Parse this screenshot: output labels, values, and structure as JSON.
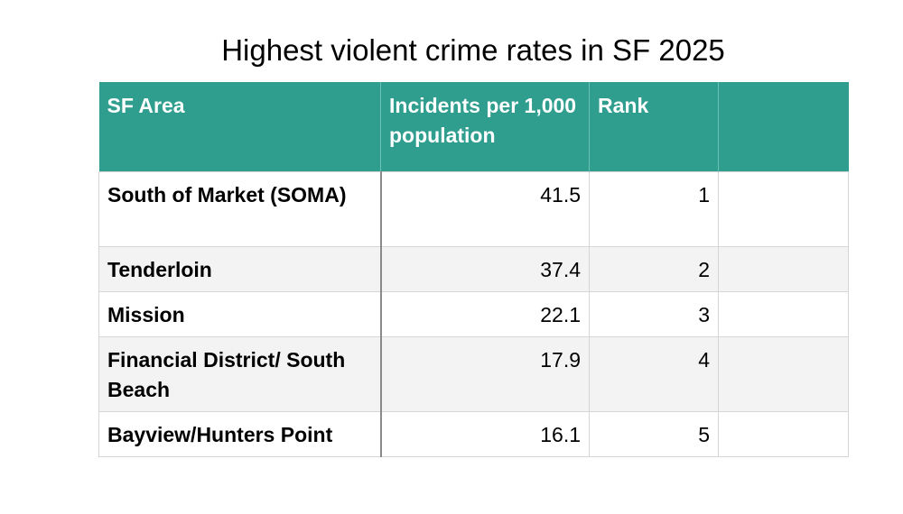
{
  "title": "Highest violent crime rates in SF 2025",
  "colors": {
    "header_background": "#2f9e8f",
    "header_text": "#ffffff",
    "alt_row_background": "#f3f3f3"
  },
  "table": {
    "headers": [
      "SF Area",
      "Incidents per 1,000 population",
      "Rank",
      ""
    ],
    "rows": [
      {
        "area": "South of Market (SOMA)",
        "incidents": "41.5",
        "rank": "1",
        "extra": ""
      },
      {
        "area": "Tenderloin",
        "incidents": "37.4",
        "rank": "2",
        "extra": ""
      },
      {
        "area": "Mission",
        "incidents": "22.1",
        "rank": "3",
        "extra": ""
      },
      {
        "area": "Financial District/ South Beach",
        "incidents": "17.9",
        "rank": "4",
        "extra": ""
      },
      {
        "area": "Bayview/Hunters Point",
        "incidents": "16.1",
        "rank": "5",
        "extra": ""
      }
    ]
  }
}
